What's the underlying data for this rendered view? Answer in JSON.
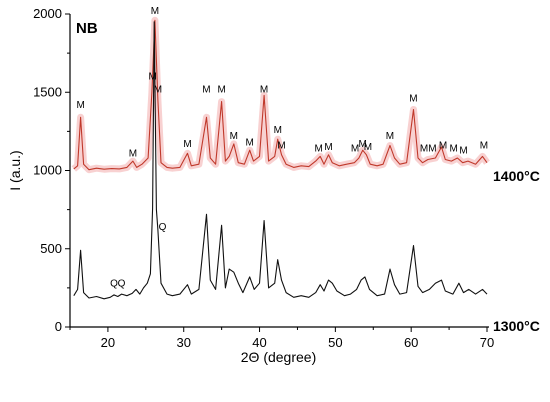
{
  "chart_data": {
    "type": "line",
    "panel_label": "NB",
    "xlabel": "2Θ (degree)",
    "ylabel": "I (a.u.)",
    "xlim": [
      15,
      70
    ],
    "ylim": [
      0,
      2000
    ],
    "x_ticks": [
      20,
      30,
      40,
      50,
      60,
      70
    ],
    "y_ticks": [
      0,
      500,
      1000,
      1500,
      2000
    ],
    "grid": false,
    "series": [
      {
        "name": "1400°C",
        "color": "#c0392b",
        "band_color": "#f3b3b3",
        "points": [
          [
            15.5,
            1010
          ],
          [
            16.0,
            1030
          ],
          [
            16.4,
            1340
          ],
          [
            16.8,
            1040
          ],
          [
            17.5,
            1005
          ],
          [
            18.5,
            1015
          ],
          [
            19.5,
            1008
          ],
          [
            20.5,
            1012
          ],
          [
            21.5,
            1010
          ],
          [
            22.5,
            1020
          ],
          [
            23.3,
            1060
          ],
          [
            23.8,
            1020
          ],
          [
            24.5,
            1040
          ],
          [
            25.3,
            1080
          ],
          [
            25.8,
            1500
          ],
          [
            26.2,
            1960
          ],
          [
            26.6,
            1450
          ],
          [
            27.0,
            1050
          ],
          [
            27.8,
            1020
          ],
          [
            28.5,
            1015
          ],
          [
            29.5,
            1020
          ],
          [
            30.5,
            1110
          ],
          [
            31.0,
            1030
          ],
          [
            32.0,
            1040
          ],
          [
            33.0,
            1340
          ],
          [
            33.5,
            1080
          ],
          [
            34.2,
            1040
          ],
          [
            35.0,
            1440
          ],
          [
            35.5,
            1060
          ],
          [
            36.0,
            1090
          ],
          [
            36.6,
            1170
          ],
          [
            37.2,
            1050
          ],
          [
            38.0,
            1040
          ],
          [
            38.7,
            1130
          ],
          [
            39.2,
            1060
          ],
          [
            40.0,
            1090
          ],
          [
            40.6,
            1480
          ],
          [
            41.2,
            1060
          ],
          [
            42.0,
            1090
          ],
          [
            42.4,
            1200
          ],
          [
            42.9,
            1100
          ],
          [
            43.5,
            1040
          ],
          [
            44.5,
            1020
          ],
          [
            45.5,
            1030
          ],
          [
            46.5,
            1025
          ],
          [
            47.4,
            1060
          ],
          [
            48.0,
            1090
          ],
          [
            48.5,
            1040
          ],
          [
            49.1,
            1100
          ],
          [
            49.6,
            1050
          ],
          [
            50.5,
            1030
          ],
          [
            51.5,
            1040
          ],
          [
            52.5,
            1050
          ],
          [
            53.1,
            1080
          ],
          [
            53.6,
            1130
          ],
          [
            54.1,
            1100
          ],
          [
            54.6,
            1040
          ],
          [
            55.5,
            1030
          ],
          [
            56.3,
            1040
          ],
          [
            57.2,
            1160
          ],
          [
            57.8,
            1080
          ],
          [
            58.5,
            1040
          ],
          [
            59.4,
            1050
          ],
          [
            60.3,
            1390
          ],
          [
            60.9,
            1080
          ],
          [
            61.5,
            1050
          ],
          [
            62.2,
            1070
          ],
          [
            63.2,
            1080
          ],
          [
            64.0,
            1150
          ],
          [
            64.5,
            1070
          ],
          [
            65.3,
            1060
          ],
          [
            66.1,
            1080
          ],
          [
            66.8,
            1050
          ],
          [
            67.5,
            1060
          ],
          [
            68.5,
            1040
          ],
          [
            69.4,
            1090
          ],
          [
            70.0,
            1050
          ]
        ]
      },
      {
        "name": "1300°C",
        "color": "#111111",
        "points": [
          [
            15.5,
            200
          ],
          [
            16.0,
            240
          ],
          [
            16.4,
            490
          ],
          [
            16.8,
            220
          ],
          [
            17.5,
            185
          ],
          [
            18.5,
            195
          ],
          [
            19.5,
            180
          ],
          [
            20.3,
            190
          ],
          [
            20.8,
            205
          ],
          [
            21.3,
            195
          ],
          [
            21.8,
            210
          ],
          [
            22.5,
            200
          ],
          [
            23.2,
            215
          ],
          [
            23.7,
            240
          ],
          [
            24.2,
            210
          ],
          [
            24.7,
            250
          ],
          [
            25.2,
            280
          ],
          [
            25.6,
            340
          ],
          [
            25.9,
            760
          ],
          [
            26.1,
            1950
          ],
          [
            26.4,
            750
          ],
          [
            26.6,
            620
          ],
          [
            27.0,
            280
          ],
          [
            27.8,
            210
          ],
          [
            28.5,
            200
          ],
          [
            29.5,
            210
          ],
          [
            30.5,
            270
          ],
          [
            31.0,
            210
          ],
          [
            32.0,
            240
          ],
          [
            33.0,
            720
          ],
          [
            33.5,
            300
          ],
          [
            34.2,
            240
          ],
          [
            35.0,
            650
          ],
          [
            35.5,
            250
          ],
          [
            36.0,
            370
          ],
          [
            36.6,
            350
          ],
          [
            37.2,
            280
          ],
          [
            37.8,
            220
          ],
          [
            38.7,
            320
          ],
          [
            39.3,
            240
          ],
          [
            40.0,
            280
          ],
          [
            40.6,
            680
          ],
          [
            41.2,
            250
          ],
          [
            42.0,
            280
          ],
          [
            42.4,
            430
          ],
          [
            42.9,
            300
          ],
          [
            43.5,
            220
          ],
          [
            44.5,
            190
          ],
          [
            45.5,
            200
          ],
          [
            46.5,
            190
          ],
          [
            47.4,
            220
          ],
          [
            48.0,
            270
          ],
          [
            48.5,
            230
          ],
          [
            49.1,
            300
          ],
          [
            49.6,
            280
          ],
          [
            50.2,
            230
          ],
          [
            51.2,
            200
          ],
          [
            52.0,
            210
          ],
          [
            52.8,
            240
          ],
          [
            53.4,
            300
          ],
          [
            53.9,
            320
          ],
          [
            54.5,
            240
          ],
          [
            55.5,
            200
          ],
          [
            56.5,
            210
          ],
          [
            57.2,
            370
          ],
          [
            57.8,
            270
          ],
          [
            58.5,
            210
          ],
          [
            59.4,
            220
          ],
          [
            60.3,
            520
          ],
          [
            60.9,
            260
          ],
          [
            61.5,
            220
          ],
          [
            62.4,
            240
          ],
          [
            63.2,
            280
          ],
          [
            64.0,
            300
          ],
          [
            64.5,
            230
          ],
          [
            65.5,
            210
          ],
          [
            66.3,
            280
          ],
          [
            66.9,
            220
          ],
          [
            67.6,
            240
          ],
          [
            68.5,
            210
          ],
          [
            69.4,
            240
          ],
          [
            70.0,
            210
          ]
        ]
      }
    ],
    "annotations": {
      "temp_upper": "1400°C",
      "temp_lower": "1300°C",
      "m_text": "M",
      "q_text": "Q",
      "m_peaks": [
        [
          16.4,
          1400
        ],
        [
          23.3,
          1090
        ],
        [
          25.9,
          1580
        ],
        [
          26.2,
          2000
        ],
        [
          26.6,
          1500
        ],
        [
          30.5,
          1150
        ],
        [
          33.0,
          1500
        ],
        [
          35.0,
          1500
        ],
        [
          36.6,
          1200
        ],
        [
          38.7,
          1160
        ],
        [
          40.6,
          1500
        ],
        [
          42.4,
          1240
        ],
        [
          42.9,
          1140
        ],
        [
          47.8,
          1120
        ],
        [
          49.1,
          1130
        ],
        [
          52.6,
          1120
        ],
        [
          53.6,
          1150
        ],
        [
          54.3,
          1130
        ],
        [
          57.2,
          1200
        ],
        [
          60.3,
          1440
        ],
        [
          61.7,
          1120
        ],
        [
          62.8,
          1120
        ],
        [
          64.2,
          1140
        ],
        [
          65.6,
          1120
        ],
        [
          66.9,
          1110
        ],
        [
          69.6,
          1140
        ]
      ],
      "q_peaks": [
        [
          20.8,
          260
        ],
        [
          21.8,
          260
        ],
        [
          27.2,
          620
        ]
      ]
    }
  }
}
